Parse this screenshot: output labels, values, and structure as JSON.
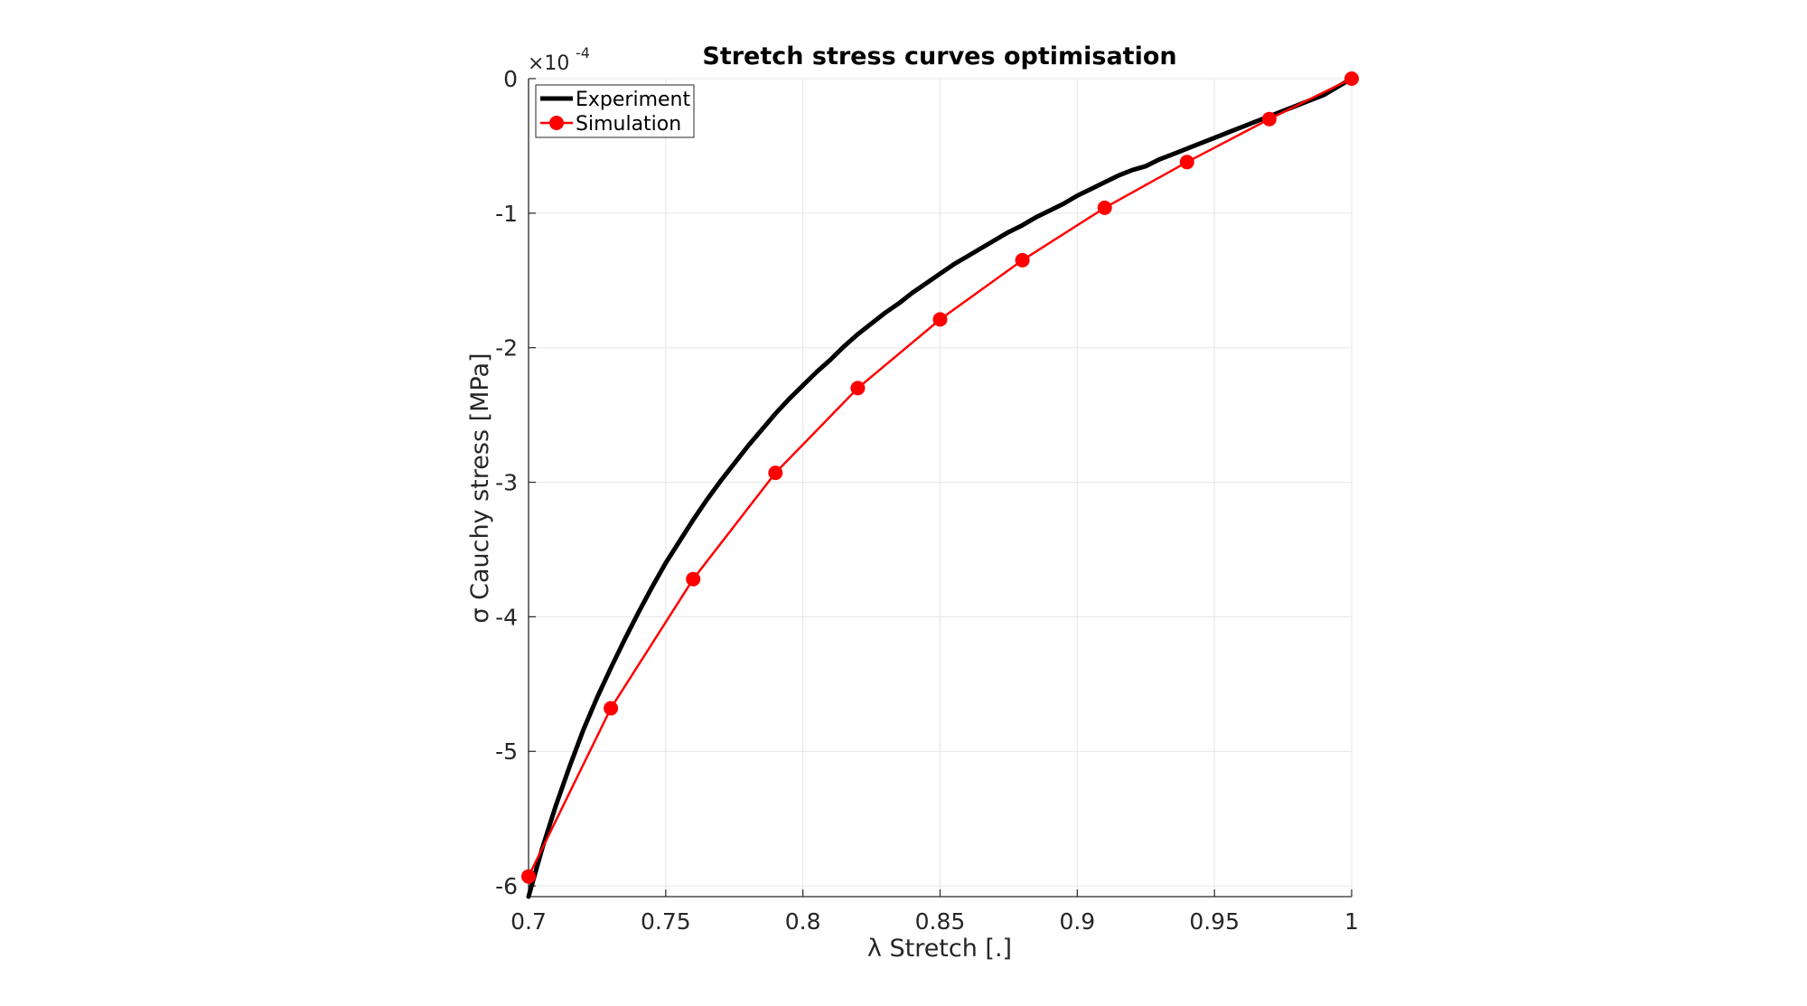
{
  "chart_data": {
    "type": "line",
    "title": "Stretch stress curves optimisation",
    "xlabel": "λ Stretch [.]",
    "ylabel": "σ Cauchy stress [MPa]",
    "y_exponent_base": "×10",
    "y_exponent_power": "-4",
    "xlim": [
      0.7,
      1.0
    ],
    "ylim": [
      -6.08,
      0.0
    ],
    "xticks": [
      0.7,
      0.75,
      0.8,
      0.85,
      0.9,
      0.95,
      1.0
    ],
    "xtick_labels": [
      "0.7",
      "0.75",
      "0.8",
      "0.85",
      "0.9",
      "0.95",
      "1"
    ],
    "yticks": [
      0,
      -1,
      -2,
      -3,
      -4,
      -5,
      -6
    ],
    "ytick_labels": [
      "0",
      "-1",
      "-2",
      "-3",
      "-4",
      "-5",
      "-6"
    ],
    "y_scale_note": "values in units of 1e-4 MPa",
    "grid": true,
    "legend_placement": "top-left",
    "series": [
      {
        "name": "Experiment",
        "color": "#000000",
        "marker": "none",
        "x": [
          0.7,
          0.705,
          0.71,
          0.715,
          0.72,
          0.725,
          0.73,
          0.735,
          0.74,
          0.745,
          0.75,
          0.755,
          0.76,
          0.765,
          0.77,
          0.775,
          0.78,
          0.785,
          0.79,
          0.795,
          0.8,
          0.805,
          0.81,
          0.815,
          0.82,
          0.825,
          0.83,
          0.835,
          0.84,
          0.845,
          0.85,
          0.855,
          0.86,
          0.865,
          0.87,
          0.875,
          0.88,
          0.885,
          0.89,
          0.895,
          0.9,
          0.905,
          0.91,
          0.915,
          0.92,
          0.925,
          0.93,
          0.935,
          0.94,
          0.945,
          0.95,
          0.955,
          0.96,
          0.965,
          0.97,
          0.975,
          0.98,
          0.985,
          0.99,
          0.995,
          1.0
        ],
        "y": [
          -6.08,
          -5.72,
          -5.4,
          -5.11,
          -4.84,
          -4.6,
          -4.38,
          -4.17,
          -3.97,
          -3.78,
          -3.6,
          -3.44,
          -3.28,
          -3.13,
          -2.99,
          -2.86,
          -2.73,
          -2.61,
          -2.49,
          -2.38,
          -2.28,
          -2.18,
          -2.09,
          -1.99,
          -1.9,
          -1.82,
          -1.74,
          -1.67,
          -1.59,
          -1.52,
          -1.45,
          -1.38,
          -1.32,
          -1.26,
          -1.2,
          -1.14,
          -1.09,
          -1.03,
          -0.98,
          -0.93,
          -0.87,
          -0.82,
          -0.77,
          -0.72,
          -0.68,
          -0.65,
          -0.6,
          -0.56,
          -0.52,
          -0.48,
          -0.44,
          -0.4,
          -0.36,
          -0.32,
          -0.28,
          -0.24,
          -0.2,
          -0.16,
          -0.12,
          -0.06,
          0.0
        ]
      },
      {
        "name": "Simulation",
        "color": "#ff0000",
        "marker": "circle",
        "x": [
          0.7,
          0.73,
          0.76,
          0.79,
          0.82,
          0.85,
          0.88,
          0.91,
          0.94,
          0.97,
          1.0
        ],
        "y": [
          -5.93,
          -4.68,
          -3.72,
          -2.93,
          -2.3,
          -1.79,
          -1.35,
          -0.96,
          -0.62,
          -0.3,
          0.0
        ]
      }
    ]
  }
}
